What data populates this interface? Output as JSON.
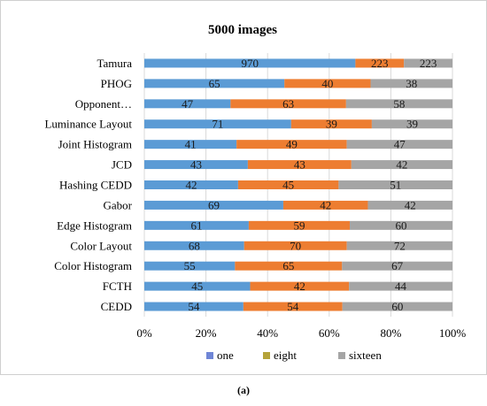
{
  "caption": "(a)",
  "chart_data": {
    "type": "bar",
    "orientation": "horizontal",
    "stacked": "percent",
    "title": "5000 images",
    "xlabel": "",
    "ylabel": "",
    "categories": [
      "Tamura",
      "PHOG",
      "Opponent…",
      "Luminance Layout",
      "Joint Histogram",
      "JCD",
      "Hashing CEDD",
      "Gabor",
      "Edge Histogram",
      "Color Layout",
      "Color Histogram",
      "FCTH",
      "CEDD"
    ],
    "series": [
      {
        "name": "one",
        "color": "#5b9bd5",
        "values": [
          970,
          65,
          47,
          71,
          41,
          43,
          42,
          69,
          61,
          68,
          55,
          45,
          54
        ]
      },
      {
        "name": "eight",
        "color": "#ed7d31",
        "values": [
          223,
          40,
          63,
          39,
          49,
          43,
          45,
          42,
          59,
          70,
          65,
          42,
          54
        ]
      },
      {
        "name": "sixteen",
        "color": "#a5a5a5",
        "values": [
          223,
          38,
          58,
          39,
          47,
          42,
          51,
          42,
          60,
          72,
          67,
          44,
          60
        ]
      }
    ],
    "legend_display_colors": {
      "one": "#6f86d6",
      "eight": "#b5a33a",
      "sixteen": "#a5a5a5"
    },
    "xticks": [
      "0%",
      "20%",
      "40%",
      "60%",
      "80%",
      "100%"
    ],
    "xlim": [
      0,
      100
    ],
    "legend": "bottom",
    "grid": true
  }
}
